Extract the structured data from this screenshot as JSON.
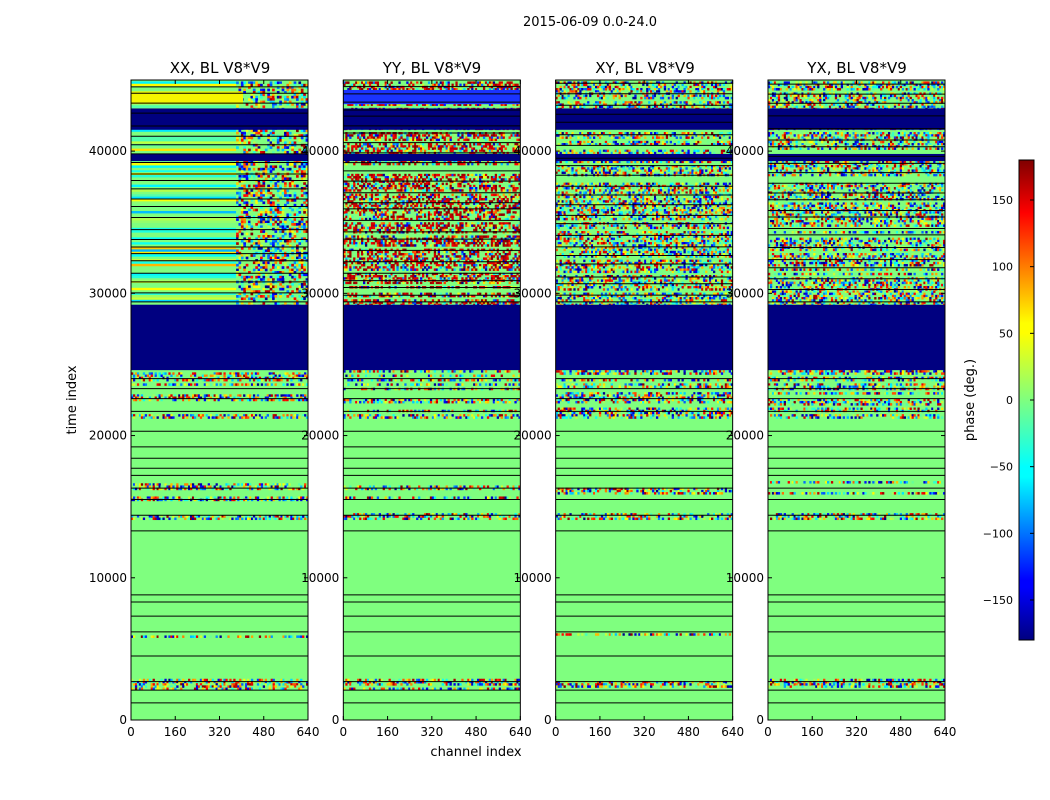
{
  "chart_data": {
    "type": "heatmap",
    "suptitle": "2015-06-09 0.0-24.0",
    "panels": [
      {
        "title": "XX, BL V8*V9",
        "scheme": "xx"
      },
      {
        "title": "YY, BL V8*V9",
        "scheme": "yy"
      },
      {
        "title": "XY, BL V8*V9",
        "scheme": "xy"
      },
      {
        "title": "YX, BL V8*V9",
        "scheme": "yx"
      }
    ],
    "xlabel": "channel index",
    "ylabel": "time index",
    "xlim": [
      0,
      640
    ],
    "ylim": [
      0,
      45000
    ],
    "xticks": [
      0,
      160,
      320,
      480,
      640
    ],
    "yticks": [
      0,
      10000,
      20000,
      30000,
      40000
    ],
    "colorbar": {
      "label": "phase (deg.)",
      "cmap": "jet",
      "range": [
        -180,
        180
      ],
      "ticks": [
        -150,
        -100,
        -50,
        0,
        50,
        100,
        150
      ]
    },
    "flagged_rows": [
      [
        24600,
        29200
      ],
      [
        39300,
        39800
      ],
      [
        41500,
        43000
      ]
    ],
    "colors": {
      "background": "#ffffff",
      "masked": "#000080",
      "calm": "#7fff7f"
    }
  }
}
